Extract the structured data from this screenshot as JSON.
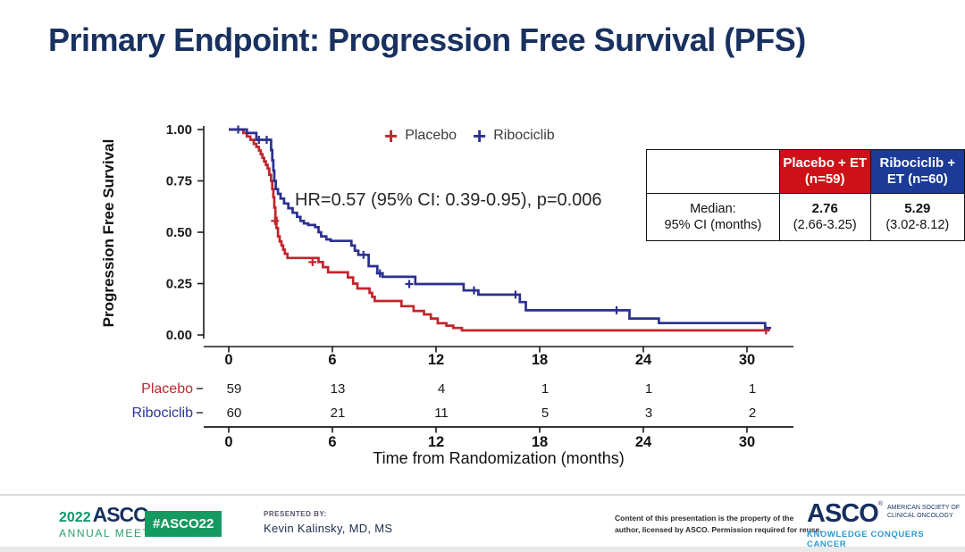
{
  "slide": {
    "title": "Primary Endpoint: Progression Free Survival (PFS)"
  },
  "chart_data": {
    "type": "line",
    "subtype": "kaplan-meier-step",
    "title": "",
    "xlabel": "Time from Randomization (months)",
    "ylabel": "Progression Free Survival",
    "annotation": "HR=0.57 (95% CI: 0.39-0.95), p=0.006",
    "xlim": [
      0,
      32
    ],
    "ylim": [
      0,
      1
    ],
    "xticks": [
      0,
      6,
      12,
      18,
      24,
      30
    ],
    "yticks": [
      1.0,
      0.75,
      0.5,
      0.25,
      0
    ],
    "grid": false,
    "legend_position": "top-center",
    "series": [
      {
        "name": "Placebo",
        "color": "#c0262c",
        "steps": [
          [
            0,
            1.0
          ],
          [
            0.75,
            1.0
          ],
          [
            0.85,
            0.983
          ],
          [
            1.05,
            0.966
          ],
          [
            1.25,
            0.95
          ],
          [
            1.45,
            0.93
          ],
          [
            1.6,
            0.915
          ],
          [
            1.75,
            0.898
          ],
          [
            1.85,
            0.88
          ],
          [
            1.95,
            0.862
          ],
          [
            2.05,
            0.845
          ],
          [
            2.15,
            0.828
          ],
          [
            2.25,
            0.81
          ],
          [
            2.35,
            0.78
          ],
          [
            2.45,
            0.75
          ],
          [
            2.52,
            0.71
          ],
          [
            2.58,
            0.67
          ],
          [
            2.64,
            0.62
          ],
          [
            2.7,
            0.57
          ],
          [
            2.76,
            0.52
          ],
          [
            2.85,
            0.48
          ],
          [
            2.95,
            0.455
          ],
          [
            3.05,
            0.435
          ],
          [
            3.15,
            0.415
          ],
          [
            3.25,
            0.395
          ],
          [
            3.4,
            0.375
          ],
          [
            5.2,
            0.355
          ],
          [
            5.45,
            0.33
          ],
          [
            5.75,
            0.305
          ],
          [
            6.9,
            0.28
          ],
          [
            7.2,
            0.25
          ],
          [
            7.45,
            0.226
          ],
          [
            8.15,
            0.205
          ],
          [
            8.3,
            0.185
          ],
          [
            8.45,
            0.165
          ],
          [
            10.0,
            0.14
          ],
          [
            10.7,
            0.117
          ],
          [
            11.3,
            0.1
          ],
          [
            11.7,
            0.08
          ],
          [
            12.1,
            0.057
          ],
          [
            12.6,
            0.045
          ],
          [
            13.0,
            0.034
          ],
          [
            13.5,
            0.022
          ],
          [
            31.3,
            0.022
          ]
        ],
        "censors": [
          [
            2.68,
            0.555
          ],
          [
            4.85,
            0.355
          ],
          [
            31.1,
            0.022
          ]
        ],
        "median_months": "2.76"
      },
      {
        "name": "Ribociclib",
        "color": "#2b308f",
        "steps": [
          [
            0,
            1.0
          ],
          [
            0.95,
            1.0
          ],
          [
            1.05,
            0.983
          ],
          [
            1.5,
            0.983
          ],
          [
            1.6,
            0.95
          ],
          [
            2.35,
            0.95
          ],
          [
            2.45,
            0.9
          ],
          [
            2.52,
            0.85
          ],
          [
            2.58,
            0.8
          ],
          [
            2.64,
            0.75
          ],
          [
            2.72,
            0.71
          ],
          [
            2.85,
            0.687
          ],
          [
            3.0,
            0.664
          ],
          [
            3.2,
            0.64
          ],
          [
            3.45,
            0.617
          ],
          [
            3.7,
            0.595
          ],
          [
            3.95,
            0.575
          ],
          [
            4.15,
            0.555
          ],
          [
            4.35,
            0.543
          ],
          [
            4.6,
            0.535
          ],
          [
            5.0,
            0.525
          ],
          [
            5.2,
            0.5
          ],
          [
            5.35,
            0.48
          ],
          [
            5.65,
            0.465
          ],
          [
            5.9,
            0.458
          ],
          [
            7.1,
            0.435
          ],
          [
            7.3,
            0.41
          ],
          [
            7.5,
            0.39
          ],
          [
            8.1,
            0.335
          ],
          [
            8.6,
            0.3
          ],
          [
            8.9,
            0.283
          ],
          [
            10.8,
            0.248
          ],
          [
            13.6,
            0.217
          ],
          [
            14.45,
            0.196
          ],
          [
            16.85,
            0.16
          ],
          [
            17.2,
            0.12
          ],
          [
            23.2,
            0.08
          ],
          [
            24.9,
            0.058
          ],
          [
            31.05,
            0.034
          ],
          [
            31.4,
            0.034
          ]
        ],
        "censors": [
          [
            0.55,
            1.0
          ],
          [
            1.75,
            0.95
          ],
          [
            2.2,
            0.95
          ],
          [
            7.8,
            0.39
          ],
          [
            8.75,
            0.3
          ],
          [
            10.45,
            0.248
          ],
          [
            14.2,
            0.217
          ],
          [
            16.6,
            0.196
          ],
          [
            22.45,
            0.12
          ]
        ],
        "median_months": "5.29"
      }
    ],
    "risk_table": {
      "times": [
        0,
        6,
        12,
        18,
        24,
        30
      ],
      "rows": [
        {
          "name": "Placebo",
          "color": "#c0262c",
          "counts": [
            59,
            13,
            4,
            1,
            1,
            1
          ]
        },
        {
          "name": "Ribociclib",
          "color": "#2b35a0",
          "counts": [
            60,
            21,
            11,
            5,
            3,
            2
          ]
        }
      ]
    }
  },
  "summary_table": {
    "row_label_top": "Median:",
    "row_label_bottom": "95% CI (months)",
    "cols": [
      {
        "header": "Placebo + ET (n=59)",
        "header_bg": "#ce1118",
        "median": "2.76",
        "ci": "(2.66-3.25)"
      },
      {
        "header": "Ribociclib + ET (n=60)",
        "header_bg": "#1b3b97",
        "median": "5.29",
        "ci": "(3.02-8.12)"
      }
    ]
  },
  "footer": {
    "meeting_year": "2022",
    "meeting_org": "ASCO",
    "reg": "®",
    "meeting_name": "ANNUAL MEETING",
    "hashtag": "#ASCO22",
    "presented_by_label": "PRESENTED  BY:",
    "presenter": "Kevin Kalinsky, MD, MS",
    "copyright_line1": "Content of this presentation is the property of the",
    "copyright_line2": "author, licensed by ASCO. Permission required for reuse.",
    "org_name": "ASCO",
    "org_sub_line1": "AMERICAN SOCIETY OF",
    "org_sub_line2": "CLINICAL ONCOLOGY",
    "org_tagline": "KNOWLEDGE CONQUERS CANCER",
    "colors": {
      "green": "#169a62",
      "navy": "#15305f",
      "lightblue": "#2c99d4"
    }
  }
}
